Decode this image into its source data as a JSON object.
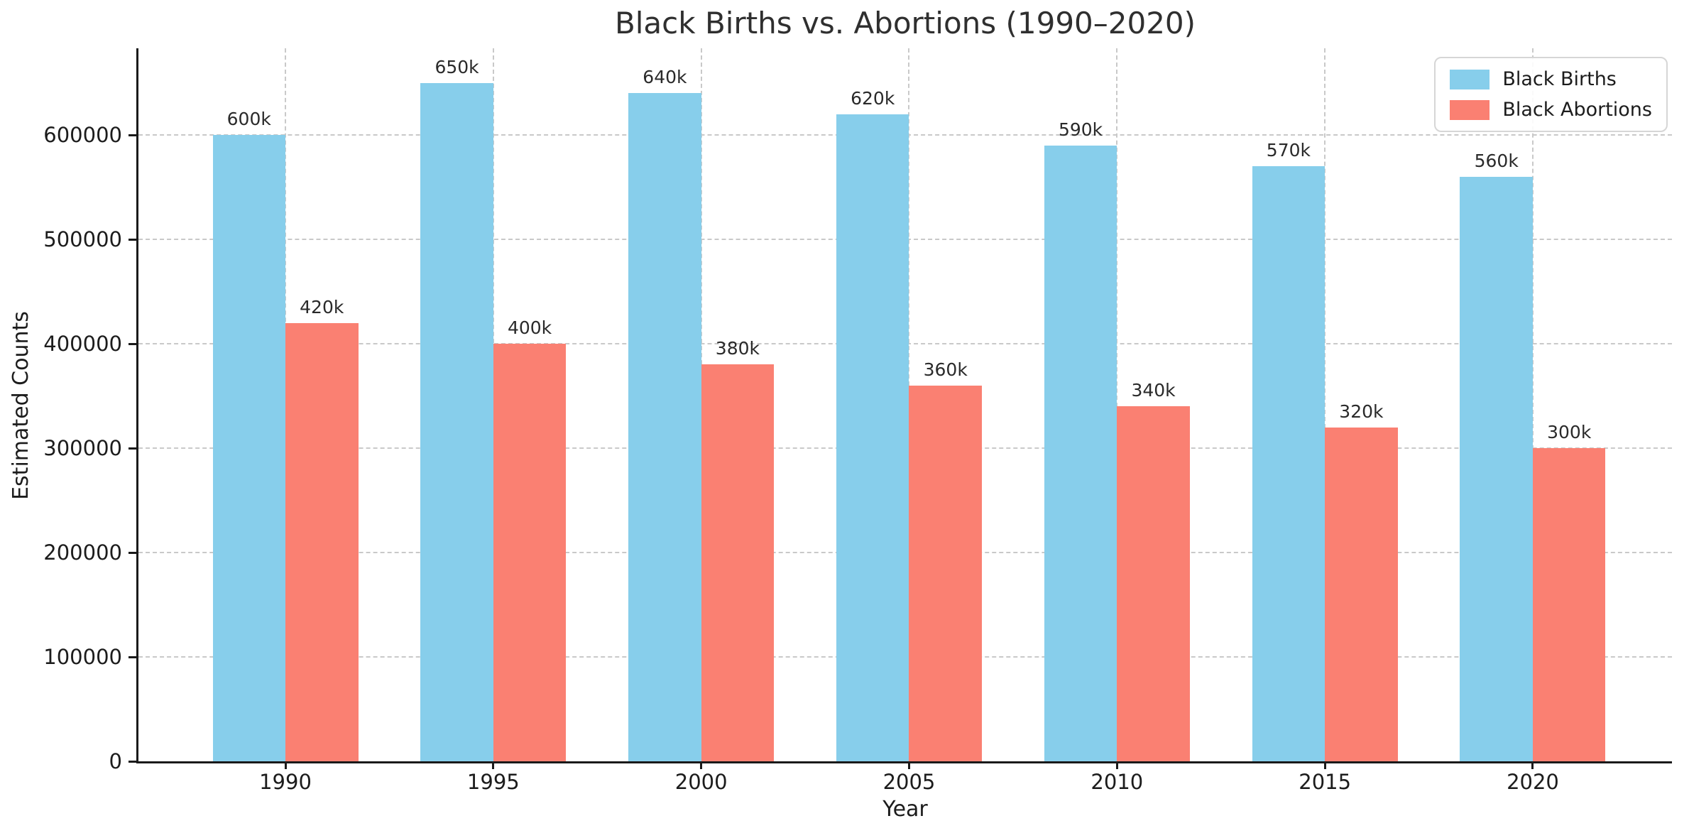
{
  "chart_data": {
    "type": "bar",
    "title": "Black Births vs. Abortions (1990–2020)",
    "xlabel": "Year",
    "ylabel": "Estimated Counts",
    "categories": [
      "1990",
      "1995",
      "2000",
      "2005",
      "2010",
      "2015",
      "2020"
    ],
    "series": [
      {
        "name": "Black Births",
        "color": "#87CEEB",
        "values": [
          600000,
          650000,
          640000,
          620000,
          590000,
          570000,
          560000
        ],
        "value_labels": [
          "600k",
          "650k",
          "640k",
          "620k",
          "590k",
          "570k",
          "560k"
        ]
      },
      {
        "name": "Black Abortions",
        "color": "#FA8072",
        "values": [
          420000,
          400000,
          380000,
          360000,
          340000,
          320000,
          300000
        ],
        "value_labels": [
          "420k",
          "400k",
          "380k",
          "360k",
          "340k",
          "320k",
          "300k"
        ]
      }
    ],
    "ylim": [
      0,
      683000
    ],
    "yticks": [
      0,
      100000,
      200000,
      300000,
      400000,
      500000,
      600000
    ],
    "ytick_labels": [
      "0",
      "100000",
      "200000",
      "300000",
      "400000",
      "500000",
      "600000"
    ],
    "grid": "dashed, both axes",
    "legend_position": "top-right"
  }
}
